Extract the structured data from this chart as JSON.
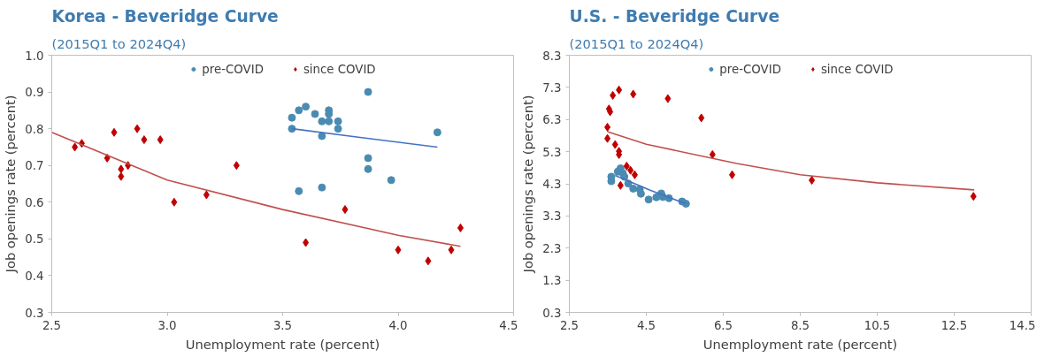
{
  "chart_data": [
    {
      "type": "scatter",
      "title": "Korea - Beveridge Curve",
      "subtitle": "(2015Q1 to 2024Q4)",
      "xlabel": "Unemployment rate (percent)",
      "ylabel": "Job openings rate (percent)",
      "xlim": [
        2.5,
        4.5
      ],
      "xticks": [
        2.5,
        {
          "value": 3.0,
          "label": "3.0"
        },
        3.5,
        {
          "value": 4.0,
          "label": "4.0"
        },
        4.5
      ],
      "ylim": [
        0.3,
        1.0
      ],
      "yticks": [
        0.3,
        0.4,
        0.5,
        0.6,
        0.7,
        0.8,
        0.9,
        {
          "value": 1.0,
          "label": "1.0"
        }
      ],
      "grid": false,
      "legend": "top",
      "series": [
        {
          "name": "pre-COVID",
          "color": "#4a8bb2",
          "marker": "circle",
          "x": [
            3.87,
            3.54,
            3.57,
            3.6,
            3.64,
            3.67,
            3.7,
            3.7,
            3.7,
            3.74,
            3.74,
            3.54,
            3.67,
            3.87,
            3.87,
            3.97,
            3.57,
            3.67,
            4.17
          ],
          "values": [
            0.9,
            0.83,
            0.85,
            0.86,
            0.84,
            0.82,
            0.85,
            0.84,
            0.82,
            0.82,
            0.8,
            0.8,
            0.78,
            0.72,
            0.69,
            0.66,
            0.63,
            0.64,
            0.79
          ]
        },
        {
          "name": "since COVID",
          "color": "#c00000",
          "marker": "diamond",
          "x": [
            2.6,
            2.63,
            2.74,
            2.77,
            2.8,
            2.8,
            2.83,
            2.87,
            2.9,
            2.97,
            3.03,
            3.17,
            3.3,
            3.6,
            3.77,
            4.0,
            4.13,
            4.23,
            4.27
          ],
          "values": [
            0.75,
            0.76,
            0.72,
            0.79,
            0.69,
            0.67,
            0.7,
            0.8,
            0.77,
            0.77,
            0.6,
            0.62,
            0.7,
            0.49,
            0.58,
            0.47,
            0.44,
            0.47,
            0.53
          ]
        },
        {
          "type": "line",
          "color": "#4472c4",
          "x": [
            3.54,
            3.85,
            4.17
          ],
          "values": [
            0.8,
            0.775,
            0.75
          ]
        },
        {
          "type": "line",
          "color": "#c0504d",
          "x": [
            2.5,
            3.0,
            3.5,
            4.0,
            4.27
          ],
          "values": [
            0.79,
            0.66,
            0.58,
            0.51,
            0.48
          ]
        }
      ]
    },
    {
      "type": "scatter",
      "title": "U.S. - Beveridge Curve",
      "subtitle": "(2015Q1 to 2024Q4)",
      "xlabel": "Unemployment rate (percent)",
      "ylabel": "Job openings rate (percent)",
      "xlim": [
        2.5,
        14.5
      ],
      "xticks": [
        2.5,
        4.5,
        6.5,
        8.5,
        10.5,
        12.5,
        14.5
      ],
      "ylim": [
        0.3,
        8.3
      ],
      "yticks": [
        0.3,
        1.3,
        2.3,
        3.3,
        4.3,
        5.3,
        6.3,
        7.3,
        8.3
      ],
      "grid": false,
      "legend": "top",
      "series": [
        {
          "name": "pre-COVID",
          "color": "#4a8bb2",
          "marker": "circle",
          "x": [
            3.83,
            3.63,
            3.59,
            3.59,
            3.76,
            3.89,
            3.93,
            4.03,
            4.16,
            4.33,
            4.36,
            4.56,
            4.76,
            4.89,
            4.93,
            5.03,
            5.09,
            5.43,
            5.53
          ],
          "values": [
            4.78,
            null,
            4.52,
            4.38,
            4.68,
            4.63,
            4.52,
            4.31,
            4.15,
            4.13,
            3.99,
            3.81,
            3.88,
            4.0,
            3.89,
            null,
            3.85,
            3.75,
            3.68
          ]
        },
        {
          "name": "since COVID",
          "color": "#c00000",
          "marker": "diamond",
          "x": [
            3.63,
            3.79,
            4.16,
            5.06,
            3.53,
            3.56,
            5.93,
            3.49,
            3.49,
            3.69,
            3.79,
            3.79,
            6.22,
            3.99,
            4.09,
            4.2,
            6.73,
            3.83,
            8.8,
            13.0
          ],
          "values": [
            7.05,
            7.22,
            7.09,
            6.95,
            6.63,
            6.54,
            6.35,
            6.06,
            5.71,
            5.52,
            5.31,
            5.21,
            5.21,
            4.85,
            4.72,
            4.58,
            4.58,
            4.25,
            4.41,
            3.91
          ]
        },
        {
          "type": "line",
          "color": "#4472c4",
          "x": [
            3.69,
            4.6,
            5.53
          ],
          "values": [
            4.56,
            4.1,
            3.68
          ]
        },
        {
          "type": "line",
          "color": "#c0504d",
          "x": [
            3.49,
            4.5,
            6.85,
            8.5,
            10.5,
            13.02
          ],
          "values": [
            5.92,
            5.53,
            4.93,
            4.58,
            4.33,
            4.11
          ]
        }
      ]
    }
  ]
}
